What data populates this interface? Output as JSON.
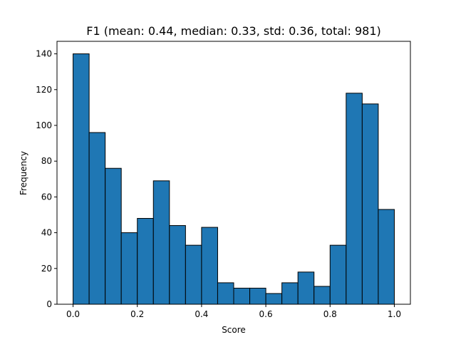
{
  "chart_data": {
    "type": "bar",
    "title": "F1 (mean: 0.44, median: 0.33, std: 0.36, total: 981)",
    "xlabel": "Score",
    "ylabel": "Frequency",
    "xlim": [
      -0.05,
      1.05
    ],
    "ylim": [
      0,
      147
    ],
    "bar_color": "#1f77b4",
    "edge_color": "#000000",
    "bin_width": 0.05,
    "bins": [
      {
        "x0": 0.0,
        "x1": 0.05,
        "value": 140
      },
      {
        "x0": 0.05,
        "x1": 0.1,
        "value": 96
      },
      {
        "x0": 0.1,
        "x1": 0.15,
        "value": 76
      },
      {
        "x0": 0.15,
        "x1": 0.2,
        "value": 40
      },
      {
        "x0": 0.2,
        "x1": 0.25,
        "value": 48
      },
      {
        "x0": 0.25,
        "x1": 0.3,
        "value": 69
      },
      {
        "x0": 0.3,
        "x1": 0.35,
        "value": 44
      },
      {
        "x0": 0.35,
        "x1": 0.4,
        "value": 33
      },
      {
        "x0": 0.4,
        "x1": 0.45,
        "value": 43
      },
      {
        "x0": 0.45,
        "x1": 0.5,
        "value": 12
      },
      {
        "x0": 0.5,
        "x1": 0.55,
        "value": 9
      },
      {
        "x0": 0.55,
        "x1": 0.6,
        "value": 9
      },
      {
        "x0": 0.6,
        "x1": 0.65,
        "value": 6
      },
      {
        "x0": 0.65,
        "x1": 0.7,
        "value": 12
      },
      {
        "x0": 0.7,
        "x1": 0.75,
        "value": 18
      },
      {
        "x0": 0.75,
        "x1": 0.8,
        "value": 10
      },
      {
        "x0": 0.8,
        "x1": 0.85,
        "value": 33
      },
      {
        "x0": 0.85,
        "x1": 0.9,
        "value": 118
      },
      {
        "x0": 0.9,
        "x1": 0.95,
        "value": 112
      },
      {
        "x0": 0.95,
        "x1": 1.0,
        "value": 53
      }
    ],
    "x_ticks": [
      {
        "value": 0.0,
        "label": "0.0"
      },
      {
        "value": 0.2,
        "label": "0.2"
      },
      {
        "value": 0.4,
        "label": "0.4"
      },
      {
        "value": 0.6,
        "label": "0.6"
      },
      {
        "value": 0.8,
        "label": "0.8"
      },
      {
        "value": 1.0,
        "label": "1.0"
      }
    ],
    "y_ticks": [
      {
        "value": 0,
        "label": "0"
      },
      {
        "value": 20,
        "label": "20"
      },
      {
        "value": 40,
        "label": "40"
      },
      {
        "value": 60,
        "label": "60"
      },
      {
        "value": 80,
        "label": "80"
      },
      {
        "value": 100,
        "label": "100"
      },
      {
        "value": 120,
        "label": "120"
      },
      {
        "value": 140,
        "label": "140"
      }
    ],
    "grid": false,
    "legend": false
  }
}
